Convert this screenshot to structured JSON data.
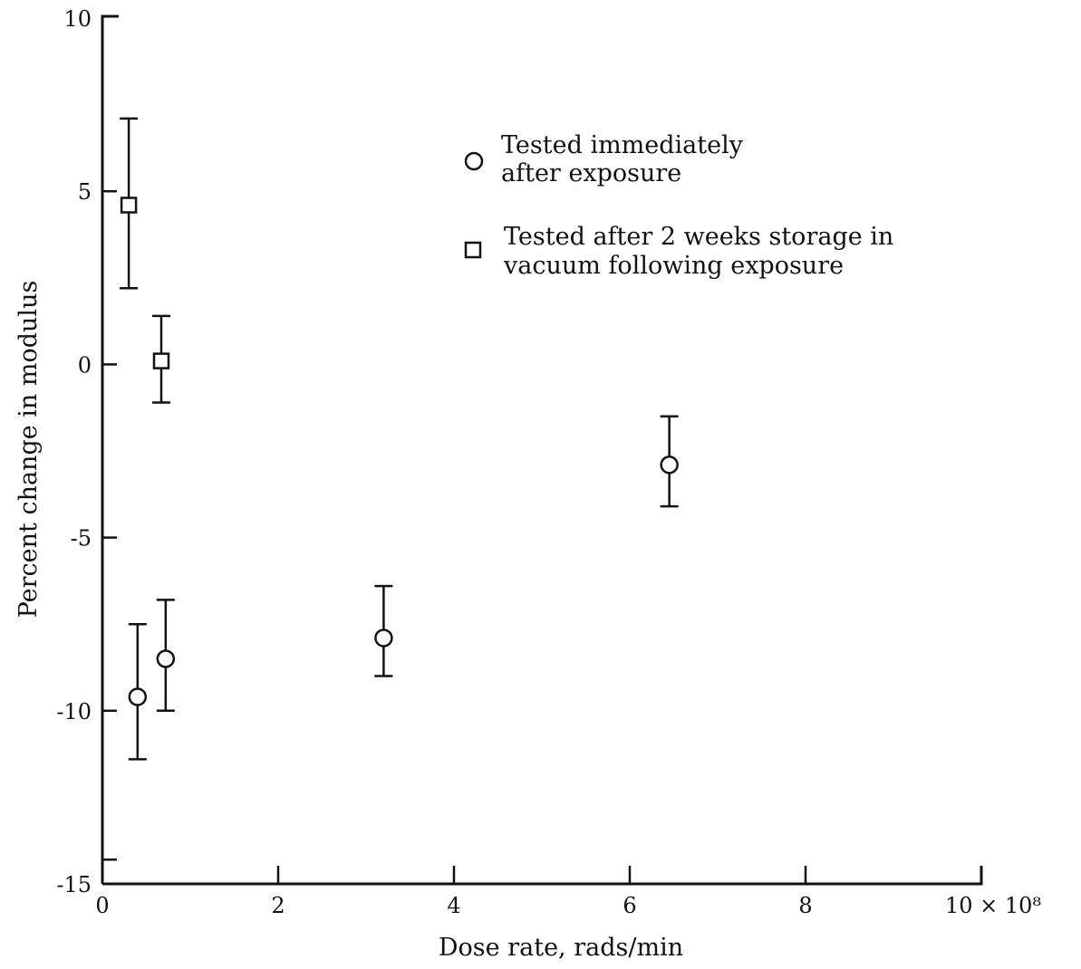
{
  "chart_data": {
    "type": "scatter",
    "title": "",
    "xlabel": "Dose rate, rads/min",
    "ylabel": "Percent change in modulus",
    "x_multiplier_label": "10 × 10⁸",
    "xlim": [
      0,
      10
    ],
    "ylim": [
      -15,
      10
    ],
    "x_ticks": [
      0,
      2,
      4,
      6,
      8,
      10
    ],
    "x_tick_labels": [
      "0",
      "2",
      "4",
      "6",
      "8"
    ],
    "y_ticks": [
      10,
      5,
      0,
      -5,
      -10,
      -15
    ],
    "y_tick_labels": [
      "10",
      "5",
      "0",
      "-5",
      "-10",
      "-15"
    ],
    "grid": false,
    "legend_position": "top-right",
    "series": [
      {
        "name": "Tested immediately after exposure",
        "name_lines": [
          "Tested immediately",
          "after exposure"
        ],
        "marker": "circle",
        "points": [
          {
            "x": 0.4,
            "y": -9.6,
            "ylow": -11.4,
            "yhigh": -7.5
          },
          {
            "x": 0.72,
            "y": -8.5,
            "ylow": -10.0,
            "yhigh": -6.8
          },
          {
            "x": 3.2,
            "y": -7.9,
            "ylow": -9.0,
            "yhigh": -6.4
          },
          {
            "x": 6.45,
            "y": -2.9,
            "ylow": -4.1,
            "yhigh": -1.5
          }
        ]
      },
      {
        "name": "Tested after 2 weeks storage in vacuum following exposure",
        "name_lines": [
          "Tested after 2 weeks storage in",
          "vacuum following exposure"
        ],
        "marker": "square",
        "points": [
          {
            "x": 0.3,
            "y": 4.6,
            "ylow": 2.2,
            "yhigh": 7.1
          },
          {
            "x": 0.67,
            "y": 0.1,
            "ylow": -1.1,
            "yhigh": 1.4
          }
        ]
      }
    ]
  }
}
